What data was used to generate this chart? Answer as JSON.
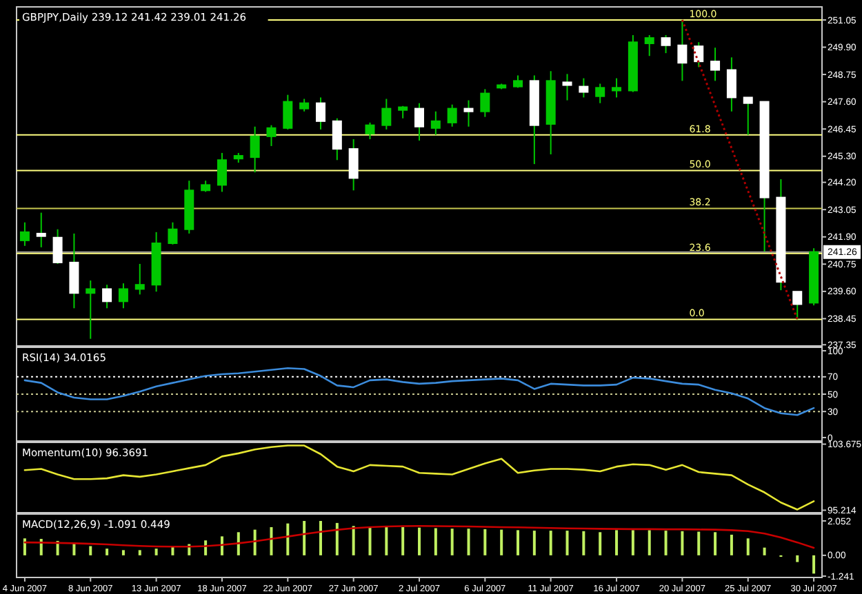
{
  "chart_data": [
    {
      "type": "candlestick",
      "title": "GBPJPY,Daily  239.12 241.42 239.01 241.26",
      "tick_labels": "y",
      "color": "#00c800",
      "categories": [
        null,
        null,
        null,
        null,
        null,
        null,
        null,
        null,
        null,
        null,
        null,
        null,
        null,
        null,
        null,
        null,
        null,
        null,
        null,
        null,
        null,
        null,
        null,
        null,
        null,
        null,
        null,
        null,
        null,
        null,
        null,
        null,
        null,
        null,
        null,
        null,
        null,
        null,
        null,
        null,
        null,
        null,
        null,
        null,
        null,
        null,
        null,
        null,
        null
      ],
      "ohlc": [
        [
          241.75,
          242.51,
          241.52,
          242.1
        ],
        [
          242.04,
          242.92,
          241.46,
          241.93
        ],
        [
          241.87,
          242.22,
          240.76,
          240.82
        ],
        [
          240.82,
          242.04,
          238.89,
          239.53
        ],
        [
          239.53,
          240.06,
          237.6,
          239.7
        ],
        [
          239.7,
          239.88,
          238.89,
          239.18
        ],
        [
          239.18,
          239.94,
          238.89,
          239.7
        ],
        [
          239.7,
          240.76,
          239.47,
          239.88
        ],
        [
          239.88,
          242.1,
          239.59,
          241.63
        ],
        [
          241.63,
          242.51,
          241.58,
          242.22
        ],
        [
          242.22,
          244.27,
          242.04,
          243.86
        ],
        [
          243.86,
          244.27,
          243.8,
          244.09
        ],
        [
          244.09,
          245.44,
          243.8,
          245.14
        ],
        [
          245.2,
          245.44,
          245.03,
          245.32
        ],
        [
          245.26,
          246.55,
          244.62,
          246.14
        ],
        [
          246.14,
          246.61,
          245.73,
          246.49
        ],
        [
          246.49,
          247.89,
          246.43,
          247.6
        ],
        [
          247.31,
          247.72,
          247.19,
          247.54
        ],
        [
          247.54,
          247.78,
          246.43,
          246.78
        ],
        [
          246.78,
          246.9,
          245.14,
          245.61
        ],
        [
          245.61,
          246.02,
          243.86,
          244.38
        ],
        [
          246.25,
          246.72,
          246.02,
          246.61
        ],
        [
          246.61,
          247.72,
          246.43,
          247.31
        ],
        [
          247.25,
          247.42,
          246.9,
          247.37
        ],
        [
          247.31,
          247.54,
          245.96,
          246.55
        ],
        [
          246.49,
          247.19,
          246.2,
          246.78
        ],
        [
          246.72,
          247.48,
          246.55,
          247.31
        ],
        [
          247.31,
          247.66,
          246.55,
          247.19
        ],
        [
          247.19,
          248.13,
          246.96,
          247.95
        ],
        [
          248.19,
          248.36,
          248.13,
          248.3
        ],
        [
          248.24,
          248.71,
          248.19,
          248.48
        ],
        [
          248.48,
          248.71,
          244.97,
          246.61
        ],
        [
          246.66,
          248.89,
          245.38,
          248.48
        ],
        [
          248.42,
          248.77,
          247.66,
          248.3
        ],
        [
          248.24,
          248.59,
          247.78,
          248.01
        ],
        [
          247.83,
          248.36,
          247.54,
          248.19
        ],
        [
          248.07,
          248.59,
          247.78,
          248.19
        ],
        [
          248.07,
          250.41,
          248.01,
          250.11
        ],
        [
          250.06,
          250.41,
          249.53,
          250.29
        ],
        [
          250.29,
          250.41,
          249.65,
          249.98
        ],
        [
          249.98,
          251.05,
          248.48,
          249.24
        ],
        [
          249.94,
          250.11,
          249.06,
          249.3
        ],
        [
          249.3,
          249.88,
          248.48,
          248.94
        ],
        [
          248.94,
          249.47,
          247.19,
          247.78
        ],
        [
          247.78,
          247.78,
          246.2,
          247.54
        ],
        [
          247.6,
          247.6,
          241.28,
          243.56
        ],
        [
          243.56,
          244.33,
          239.65,
          240.0
        ],
        [
          239.59,
          239.59,
          238.42,
          239.06
        ],
        [
          239.12,
          241.42,
          239.01,
          241.26
        ]
      ],
      "colors": [
        "#00c800",
        "#ffffff",
        "#ffffff",
        "#ffffff",
        "#00c800",
        "#ffffff",
        "#00c800",
        "#00c800",
        "#00c800",
        "#00c800",
        "#00c800",
        "#00c800",
        "#00c800",
        "#00c800",
        "#00c800",
        "#00c800",
        "#00c800",
        "#00c800",
        "#ffffff",
        "#ffffff",
        "#ffffff",
        "#00c800",
        "#00c800",
        "#00c800",
        "#ffffff",
        "#00c800",
        "#00c800",
        "#ffffff",
        "#00c800",
        "#00c800",
        "#00c800",
        "#ffffff",
        "#00c800",
        "#ffffff",
        "#ffffff",
        "#00c800",
        "#00c800",
        "#00c800",
        "#00c800",
        "#ffffff",
        "#ffffff",
        "#ffffff",
        "#ffffff",
        "#ffffff",
        "#ffffff",
        "#ffffff",
        "#ffffff",
        "#ffffff",
        "#00c800"
      ],
      "ylim": [
        237.3,
        251.6
      ],
      "yticks": [
        251.05,
        {
          "value": 249.9,
          "label": "249.90"
        },
        248.75,
        {
          "value": 247.6,
          "label": "247.60"
        },
        246.45,
        {
          "value": 245.3,
          "label": "245.30"
        },
        {
          "value": 244.2,
          "label": "244.20"
        },
        243.05,
        {
          "value": 241.9,
          "label": "241.90"
        },
        240.75,
        {
          "value": 239.6,
          "label": "239.60"
        },
        238.45,
        237.35
      ],
      "annotations": [
        {
          "text": "100.0",
          "y": 251.05
        },
        {
          "text": "61.8",
          "y": 246.2
        },
        {
          "text": "50.0",
          "y": 244.7
        },
        {
          "text": "38.2",
          "y": 243.1
        },
        {
          "text": "23.6",
          "y": 241.2
        },
        {
          "text": "0.0",
          "y": 238.42
        }
      ],
      "ref_lines": [
        {
          "axis": "y",
          "value": 241.26,
          "label": "241.26",
          "color": "#9a9a9a"
        },
        {
          "axis": "y",
          "value": 251.05,
          "color": "#ffff80"
        },
        {
          "axis": "y",
          "value": 246.2,
          "color": "#ffff80"
        },
        {
          "axis": "y",
          "value": 244.7,
          "color": "#ffff80"
        },
        {
          "axis": "y",
          "value": 243.1,
          "color": "#c8c850"
        },
        {
          "axis": "y",
          "value": 241.2,
          "color": "#ffff80"
        },
        {
          "axis": "y",
          "value": 238.42,
          "color": "#ffff80"
        }
      ]
    },
    {
      "type": "line",
      "title": "RSI(14) 34.0165",
      "tick_labels": "y",
      "categories": [
        null,
        null,
        null,
        null,
        null,
        null,
        null,
        null,
        null,
        null,
        null,
        null,
        null,
        null,
        null,
        null,
        null,
        null,
        null,
        null,
        null,
        null,
        null,
        null,
        null,
        null,
        null,
        null,
        null,
        null,
        null,
        null,
        null,
        null,
        null,
        null,
        null,
        null,
        null,
        null,
        null,
        null,
        null,
        null,
        null,
        null,
        null,
        null,
        null
      ],
      "series": [
        {
          "color": "#3c8cdc",
          "values": [
            66,
            63,
            52,
            46,
            44,
            44,
            48,
            53,
            59,
            63,
            67,
            71,
            73,
            74,
            76,
            78,
            80,
            79,
            71,
            60,
            58,
            66,
            67,
            64,
            62,
            63,
            65,
            66,
            67,
            68,
            66,
            56,
            62,
            61,
            60,
            60,
            61,
            69,
            68,
            65,
            62,
            61,
            55,
            51,
            45,
            34,
            28,
            26,
            34
          ]
        }
      ],
      "ylim": [
        -4,
        104
      ],
      "yticks": [
        100,
        70,
        50,
        30,
        0
      ],
      "ref_lines": [
        {
          "axis": "y",
          "value": 70,
          "color": "#ffffff",
          "line_style": "dotted"
        },
        {
          "axis": "y",
          "value": 50,
          "color": "#c8c890",
          "line_style": "dotted"
        },
        {
          "axis": "y",
          "value": 30,
          "color": "#c8c890",
          "line_style": "dotted"
        }
      ]
    },
    {
      "type": "line",
      "title": "Momentum(10) 96.3691",
      "tick_labels": "y",
      "categories": [
        null,
        null,
        null,
        null,
        null,
        null,
        null,
        null,
        null,
        null,
        null,
        null,
        null,
        null,
        null,
        null,
        null,
        null,
        null,
        null,
        null,
        null,
        null,
        null,
        null,
        null,
        null,
        null,
        null,
        null,
        null,
        null,
        null,
        null,
        null,
        null,
        null,
        null,
        null,
        null,
        null,
        null,
        null,
        null,
        null,
        null,
        null,
        null,
        null
      ],
      "series": [
        {
          "color": "#e6e632",
          "values": [
            100.35,
            100.5,
            99.8,
            99.2,
            99.2,
            99.3,
            99.7,
            99.5,
            99.8,
            100.2,
            100.6,
            101.0,
            102.1,
            102.5,
            103.0,
            103.3,
            103.5,
            103.5,
            102.4,
            100.8,
            100.2,
            101.0,
            100.9,
            100.8,
            100.0,
            99.9,
            99.8,
            100.5,
            101.2,
            101.8,
            100.0,
            100.3,
            100.5,
            100.5,
            100.4,
            100.2,
            100.8,
            101.1,
            101.0,
            100.4,
            101.0,
            100.1,
            99.9,
            99.7,
            98.5,
            97.5,
            96.2,
            95.3,
            96.37
          ]
        }
      ],
      "ylim": [
        94.9,
        103.9
      ],
      "yticks": [
        103.675,
        95.214
      ]
    },
    {
      "type": "bar",
      "title": "MACD(12,26,9) -1.091 0.449",
      "categories": [
        "4 Jun 2007",
        null,
        null,
        null,
        "8 Jun 2007",
        null,
        null,
        null,
        "13 Jun 2007",
        null,
        null,
        null,
        "18 Jun 2007",
        null,
        null,
        null,
        "22 Jun 2007",
        null,
        null,
        null,
        "27 Jun 2007",
        null,
        null,
        null,
        "2 Jul 2007",
        null,
        null,
        null,
        "6 Jul 2007",
        null,
        null,
        null,
        "11 Jul 2007",
        null,
        null,
        null,
        "16 Jul 2007",
        null,
        null,
        null,
        "20 Jul 2007",
        null,
        null,
        null,
        "25 Jul 2007",
        null,
        null,
        null,
        "30 Jul 2007"
      ],
      "series": [
        {
          "type": "bar",
          "color": "#c0f060",
          "values": [
            1.01,
            0.98,
            0.86,
            0.7,
            0.55,
            0.4,
            0.31,
            0.31,
            0.4,
            0.52,
            0.67,
            0.89,
            1.13,
            1.38,
            1.53,
            1.68,
            1.9,
            2.05,
            2.05,
            1.93,
            1.75,
            1.72,
            1.72,
            1.68,
            1.65,
            1.62,
            1.59,
            1.59,
            1.56,
            1.53,
            1.5,
            1.47,
            1.47,
            1.47,
            1.44,
            1.38,
            1.5,
            1.5,
            1.5,
            1.47,
            1.44,
            1.41,
            1.38,
            1.23,
            1.01,
            0.46,
            -0.09,
            -0.4,
            -1.09
          ]
        },
        {
          "type": "line",
          "color": "#c80000",
          "values": [
            0.77,
            0.76,
            0.74,
            0.72,
            0.69,
            0.65,
            0.6,
            0.56,
            0.53,
            0.52,
            0.52,
            0.55,
            0.62,
            0.72,
            0.84,
            0.98,
            1.12,
            1.27,
            1.4,
            1.52,
            1.62,
            1.68,
            1.72,
            1.74,
            1.75,
            1.74,
            1.73,
            1.72,
            1.7,
            1.68,
            1.67,
            1.65,
            1.63,
            1.61,
            1.6,
            1.58,
            1.57,
            1.56,
            1.56,
            1.55,
            1.55,
            1.54,
            1.53,
            1.5,
            1.44,
            1.3,
            1.06,
            0.77,
            0.449
          ]
        }
      ],
      "ylim": [
        -1.32,
        2.46
      ],
      "yticks": [
        2.052,
        {
          "value": 0,
          "label": "0.00"
        },
        -1.241
      ]
    }
  ]
}
